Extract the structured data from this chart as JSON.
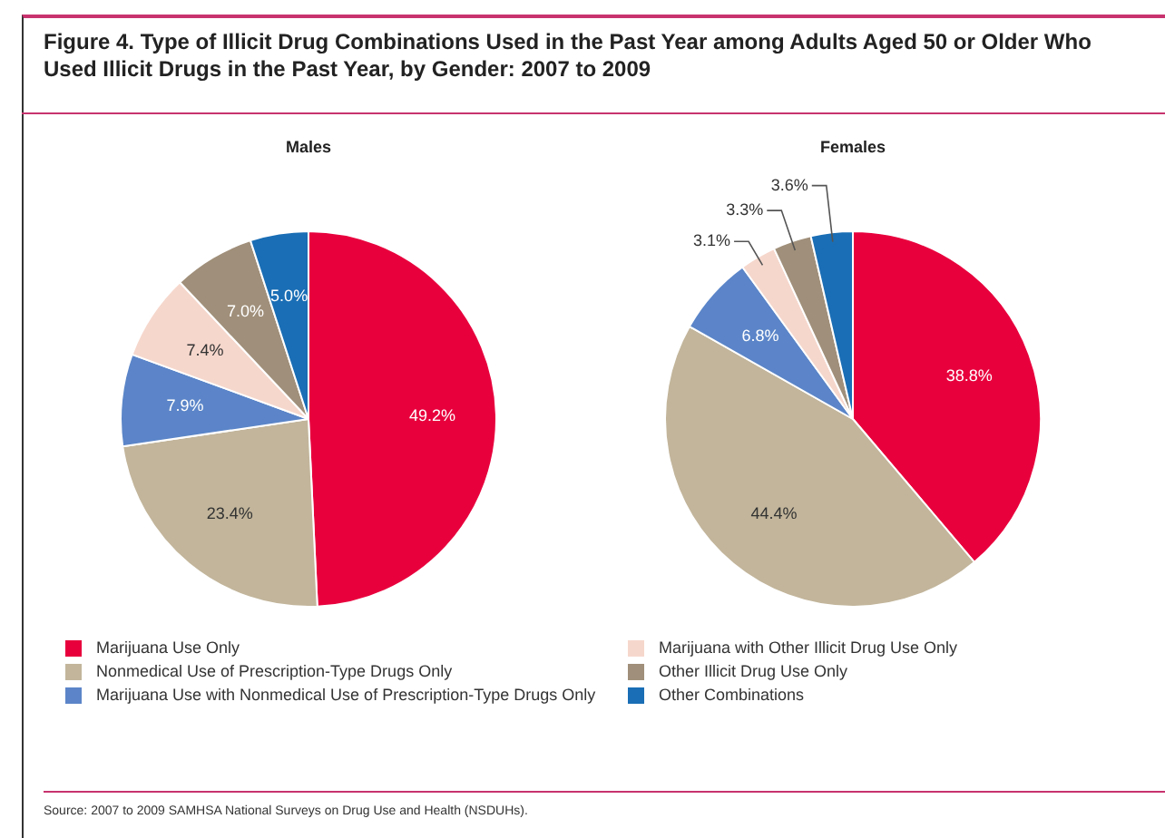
{
  "chart_data": [
    {
      "type": "pie",
      "title": "Figure 4. Type of Illicit Drug Combinations Used in the Past Year among Adults Aged 50 or Older Who Used Illicit Drugs in the Past Year, by Gender: 2007 to 2009",
      "subtitle": "Males",
      "categories": [
        "Marijuana Use Only",
        "Nonmedical Use of Prescription-Type Drugs Only",
        "Marijuana Use with Nonmedical Use of Prescription-Type Drugs Only",
        "Marijuana with Other Illicit Drug Use Only",
        "Other Illicit Drug Use Only",
        "Other Combinations"
      ],
      "values": [
        49.2,
        23.4,
        7.9,
        7.4,
        7.0,
        5.0
      ],
      "value_labels": [
        "49.2%",
        "23.4%",
        "7.9%",
        "7.4%",
        "7.0%",
        "5.0%"
      ],
      "colors": [
        "#e8003d",
        "#c2b59b",
        "#5b85c8",
        "#f6d7cc",
        "#a08f7a",
        "#1a6eb5"
      ],
      "legend": "bottom",
      "annotations": [
        "Source: 2007 to 2009 SAMHSA National Surveys on Drug Use and Health (NSDUHs)."
      ]
    },
    {
      "type": "pie",
      "title": "Females",
      "categories": [
        null,
        null,
        null,
        null,
        null,
        null
      ],
      "values": [
        38.8,
        44.4,
        6.8,
        3.1,
        3.3,
        3.6
      ],
      "value_labels": [
        "38.8%",
        "44.4%",
        "6.8%",
        "3.1%",
        "3.3%",
        "3.6%"
      ],
      "colors": [
        "#e8003d",
        "#c2b59b",
        "#5b85c8",
        "#f6d7cc",
        "#a08f7a",
        "#1a6eb5"
      ]
    }
  ]
}
